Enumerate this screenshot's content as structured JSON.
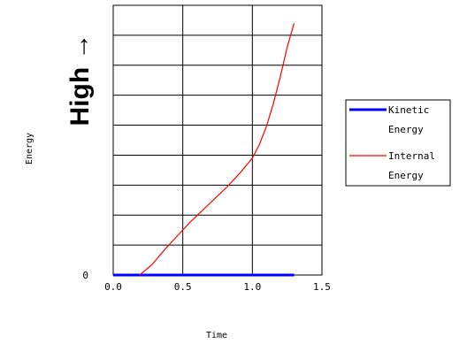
{
  "chart_data": {
    "type": "line",
    "title": "",
    "xlabel": "Time",
    "ylabel": "Energy",
    "y_annotation": "High →",
    "xlim": [
      0,
      1.5
    ],
    "ylim": [
      0,
      9
    ],
    "x_ticks": [
      "0.0",
      "0.5",
      "1.0",
      "1.5"
    ],
    "y_ticks": [
      "0"
    ],
    "grid": true,
    "legend_position": "right",
    "series": [
      {
        "name": "Kinetic Energy",
        "legend_lines": [
          "Kinetic",
          "Energy"
        ],
        "color": "#0000ff",
        "x": [
          0.0,
          1.3
        ],
        "y": [
          0.0,
          0.0
        ]
      },
      {
        "name": "Internal Energy",
        "legend_lines": [
          "Internal",
          "Energy"
        ],
        "color": "#ff0000",
        "x": [
          0.19,
          0.28,
          0.37,
          0.46,
          0.55,
          0.64,
          0.73,
          0.82,
          0.91,
          1.0,
          1.05,
          1.1,
          1.15,
          1.2,
          1.25,
          1.3
        ],
        "y": [
          0.0,
          0.35,
          0.85,
          1.3,
          1.75,
          2.15,
          2.55,
          2.95,
          3.4,
          3.9,
          4.35,
          4.95,
          5.7,
          6.6,
          7.6,
          8.4
        ]
      }
    ]
  }
}
